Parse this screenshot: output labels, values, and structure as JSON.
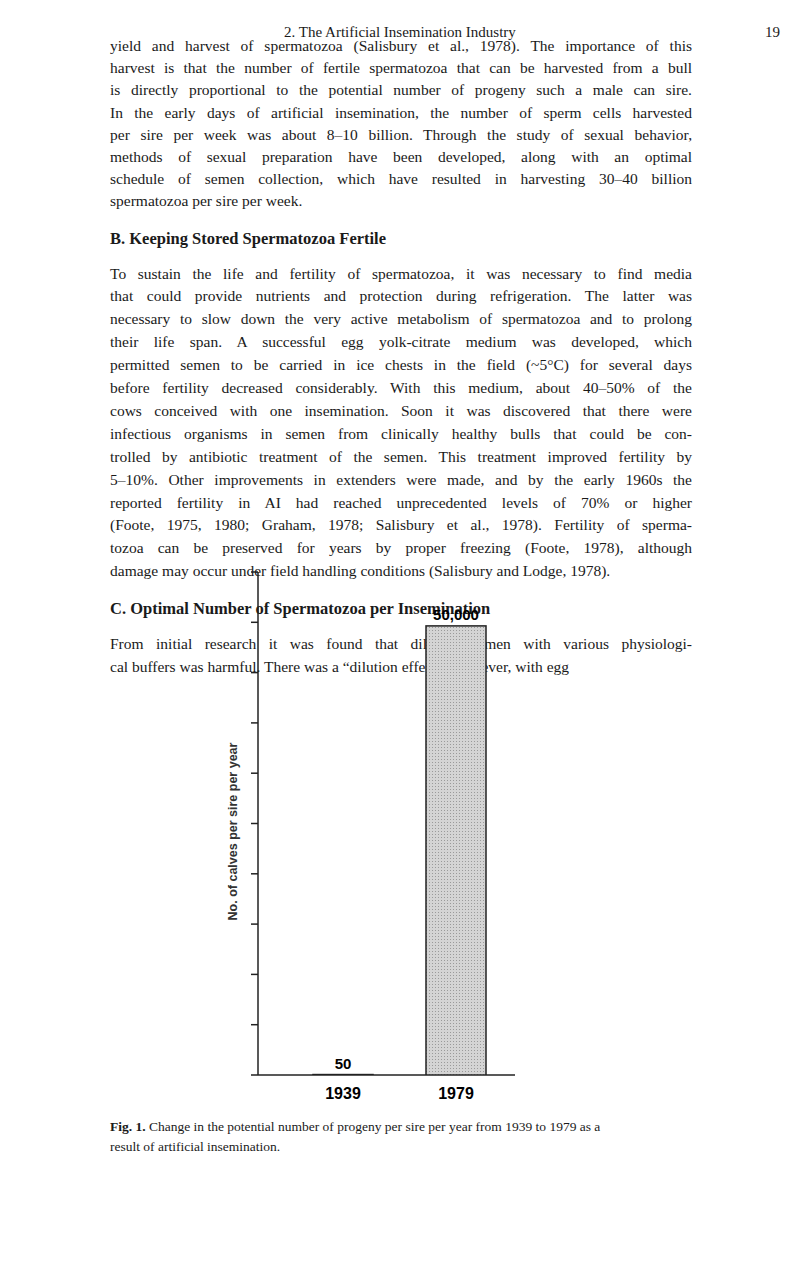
{
  "header": {
    "title": "2. The Artificial Insemination Industry",
    "page": "19"
  },
  "body": [
    {
      "type": "paragraph",
      "lines": [
        "yield and harvest of spermatozoa (Salisbury et al., 1978). The importance of this",
        "harvest is that the number of fertile spermatozoa that can be harvested from a bull",
        "is directly proportional to the potential number of progeny such a male can sire.",
        "In the early days of artificial insemination, the number of sperm cells harvested",
        "per sire per week was about 8–10 billion. Through the study of sexual behavior,",
        "methods of sexual preparation have been developed, along with an optimal",
        "schedule of semen collection, which have resulted in harvesting 30–40 billion",
        "spermatozoa per sire per week."
      ]
    },
    {
      "type": "heading",
      "text": "B. Keeping Stored Spermatozoa Fertile"
    },
    {
      "type": "paragraph",
      "lines": [
        "To sustain the life and fertility of spermatozoa, it was necessary to find media",
        "that could provide nutrients and protection during refrigeration. The latter was",
        "necessary to slow down the very active metabolism of spermatozoa and to prolong",
        "their life span. A successful egg yolk-citrate medium was developed, which",
        "permitted semen to be carried in ice chests in the field (~5°C) for several days",
        "before fertility decreased considerably. With this medium, about 40–50% of the",
        "cows conceived with one insemination. Soon it was discovered that there were",
        "infectious organisms in semen from clinically healthy bulls that could be con-",
        "trolled by antibiotic treatment of the semen. This treatment improved fertility by",
        "5–10%. Other improvements in extenders were made, and by the early 1960s the",
        "reported fertility in AI had reached unprecedented levels of 70% or higher",
        "(Foote, 1975, 1980; Graham, 1978; Salisbury et al., 1978). Fertility of sperma-",
        "tozoa can be preserved for years by proper freezing (Foote, 1978), although",
        "damage may occur under field handling conditions (Salisbury and Lodge, 1978)."
      ]
    },
    {
      "type": "heading",
      "text": "C. Optimal Number of Spermatozoa per Insemination"
    },
    {
      "type": "paragraph",
      "lines": [
        "From initial research it was found that diluting semen with various physiologi-",
        "cal buffers was harmful. There was a “dilution effect.” However, with egg"
      ]
    }
  ],
  "chart_data": {
    "type": "bar",
    "y_label": "No. of calves per sire per year",
    "categories": [
      "1939",
      "1979"
    ],
    "values": [
      50,
      50000
    ],
    "value_labels": [
      "50",
      "50,000"
    ],
    "data_labels": true,
    "color": "#d4d4d4",
    "ylim": [
      0,
      56000
    ],
    "yticks": [
      0,
      5600,
      11200,
      16800,
      22400,
      28000,
      33600,
      39200,
      44800,
      50400,
      56000
    ],
    "tick_labels": "x",
    "grid": false
  },
  "caption": {
    "label": "Fig. 1.",
    "lines": [
      "Change in the potential number of progeny per sire per year from 1939 to 1979 as a",
      "result of artificial insemination."
    ]
  }
}
